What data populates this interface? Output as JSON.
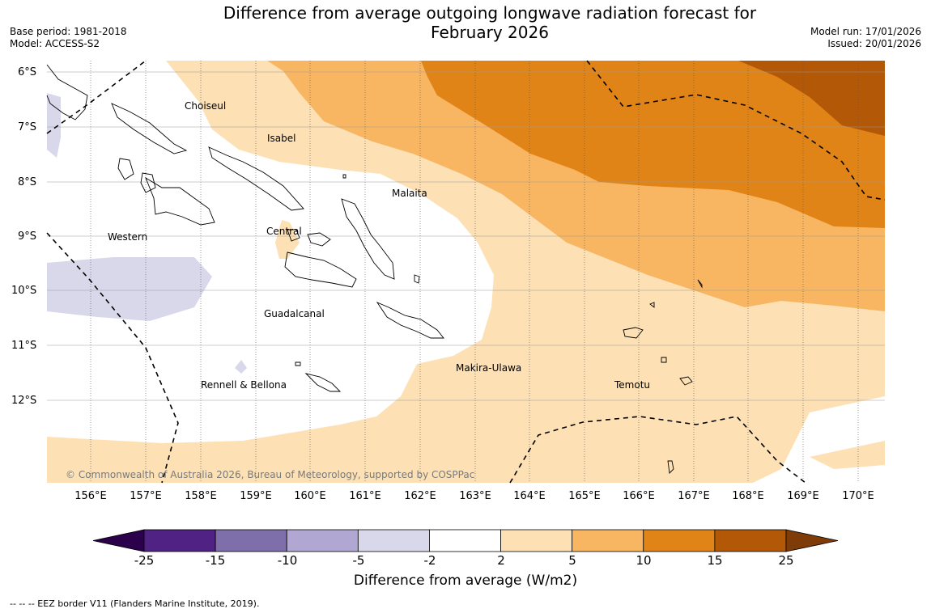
{
  "title_line1": "Difference from average outgoing longwave radiation forecast for",
  "title_line2": "February 2026",
  "base_period": "Base period: 1981-2018",
  "model": "Model: ACCESS-S2",
  "model_run": "Model run: 17/01/2026",
  "issued": "Issued: 20/01/2026",
  "copyright": "© Commonwealth of Australia 2026, Bureau of Meteorology, supported by COSPPac",
  "footnote": "--  --  -- EEZ border V11 (Flanders Marine Institute, 2019).",
  "colorbar": {
    "label": "Difference from average (W/m2)",
    "ticks": [
      "-25",
      "-15",
      "-10",
      "-5",
      "-2",
      "2",
      "5",
      "10",
      "15",
      "25"
    ],
    "colors": [
      "#4f2283",
      "#7e6fab",
      "#b0a8d2",
      "#d8d8ea",
      "#ffffff",
      "#fde0b4",
      "#f9b662",
      "#e08417",
      "#b35806"
    ],
    "under_color": "#2d004b",
    "over_color": "#7f3b08"
  },
  "axes": {
    "lat_labels": [
      "6°S",
      "7°S",
      "8°S",
      "9°S",
      "10°S",
      "11°S",
      "12°S"
    ],
    "lon_labels": [
      "156°E",
      "157°E",
      "158°E",
      "159°E",
      "160°E",
      "161°E",
      "162°E",
      "163°E",
      "164°E",
      "165°E",
      "166°E",
      "167°E",
      "168°E",
      "169°E",
      "170°E"
    ]
  },
  "regions": {
    "choiseul": "Choiseul",
    "isabel": "Isabel",
    "malaita": "Malaita",
    "western": "Western",
    "central": "Central",
    "guadalcanal": "Guadalcanal",
    "makira": "Makira-Ulawa",
    "rennell": "Rennell & Bellona",
    "temotu": "Temotu"
  }
}
